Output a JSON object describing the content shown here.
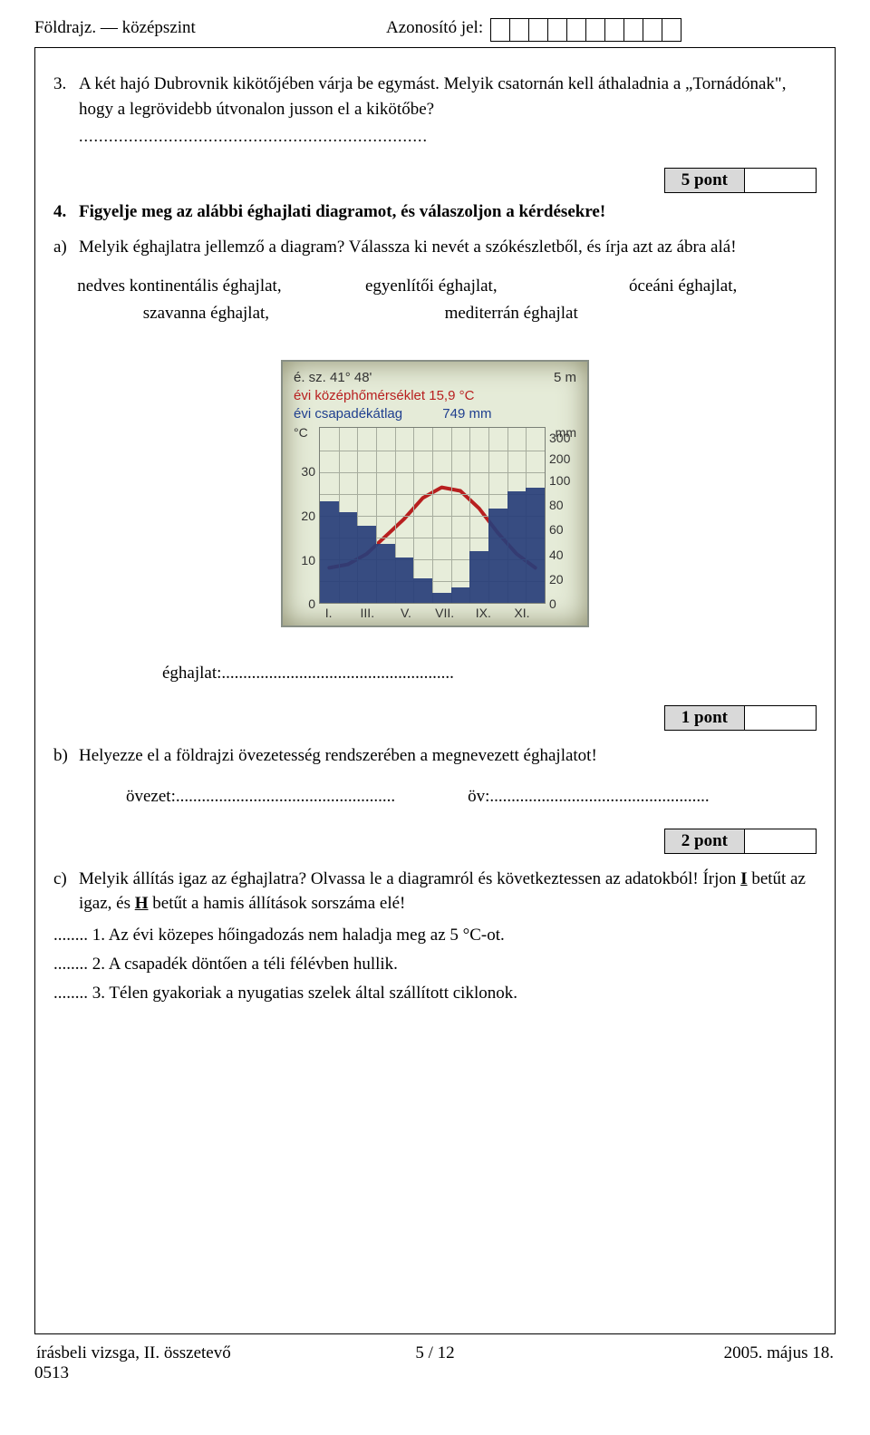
{
  "header": {
    "left": "Földrajz. — középszint",
    "center_label": "Azonosító jel:",
    "id_box_count": 10
  },
  "q3": {
    "number": "3.",
    "text": "A két hajó Dubrovnik kikötőjében várja be egymást. Melyik csatornán kell áthaladnia a „Tornádónak\", hogy a legrövidebb útvonalon jusson el a kikötőbe?",
    "dots": "......................................................................"
  },
  "points": {
    "p5": "5 pont",
    "p1": "1 pont",
    "p2": "2 pont"
  },
  "q4": {
    "number": "4.",
    "text": "Figyelje meg az alábbi éghajlati diagramot, és válaszoljon a kérdésekre!"
  },
  "sub_a": {
    "label": "a)",
    "text": "Melyik éghajlatra jellemző a diagram? Válassza ki nevét a szókészletből, és írja azt az ábra alá!"
  },
  "climates": {
    "row1": [
      "nedves kontinentális éghajlat,",
      "egyenlítői éghajlat,",
      "óceáni éghajlat,"
    ],
    "row2": [
      "szavanna éghajlat,",
      "mediterrán éghajlat"
    ]
  },
  "chart": {
    "lat_label": "é. sz. 41° 48'",
    "elev_label": "5 m",
    "temp_label": "évi középhőmérséklet 15,9 °C",
    "precip_label_prefix": "évi csapadékátlag",
    "precip_value": "749 mm",
    "unit_left": "°C",
    "unit_right": "mm",
    "left_ticks": [
      {
        "label": "30",
        "pct": 25
      },
      {
        "label": "20",
        "pct": 50
      },
      {
        "label": "10",
        "pct": 75
      },
      {
        "label": "0",
        "pct": 100
      }
    ],
    "right_ticks": [
      {
        "label": "300",
        "pct": 6
      },
      {
        "label": "200",
        "pct": 18
      },
      {
        "label": "100",
        "pct": 30
      },
      {
        "label": "80",
        "pct": 44
      },
      {
        "label": "60",
        "pct": 58
      },
      {
        "label": "40",
        "pct": 72
      },
      {
        "label": "20",
        "pct": 86
      },
      {
        "label": "0",
        "pct": 100
      }
    ],
    "grid_h_count": 8,
    "bar_heights_pct": [
      58,
      52,
      44,
      34,
      26,
      14,
      6,
      9,
      30,
      54,
      64,
      66
    ],
    "bar_color": "#283e7a",
    "temp_points_pct": [
      80,
      78,
      72,
      62,
      52,
      40,
      34,
      36,
      46,
      60,
      72,
      80
    ],
    "temp_stroke": "#b81f1f",
    "temp_stroke_width": 4,
    "x_labels": [
      "I.",
      "",
      "III.",
      "",
      "V.",
      "",
      "VII.",
      "",
      "IX.",
      "",
      "XI.",
      ""
    ],
    "bg_color": "#e7edda",
    "grid_color": "#a7ad9e",
    "border_color": "#888f86"
  },
  "answer_climate": {
    "label": "éghajlat:",
    "dots": "......................................................"
  },
  "sub_b": {
    "label": "b)",
    "text": "Helyezze el a földrajzi övezetesség rendszerében a megnevezett éghajlatot!"
  },
  "zone_line": {
    "ovezet": "övezet:...................................................",
    "ov": "öv:..................................................."
  },
  "sub_c": {
    "label": "c)",
    "text_before": "Melyik állítás igaz az éghajlatra? Olvassa le a diagramról és következtessen az adatokból! Írjon ",
    "i_letter": "I",
    "text_mid": " betűt az igaz, és ",
    "h_letter": "H",
    "text_after": " betűt a hamis állítások sorszáma elé!"
  },
  "statements": [
    "........ 1. Az évi közepes hőingadozás nem haladja meg az 5 °C-ot.",
    "........ 2. A csapadék döntően a téli félévben hullik.",
    "........ 3. Télen gyakoriak a nyugatias szelek által szállított ciklonok."
  ],
  "footer": {
    "left": "írásbeli vizsga, II. összetevő",
    "center": "5 / 12",
    "right": "2005. május 18.",
    "code": "0513"
  }
}
